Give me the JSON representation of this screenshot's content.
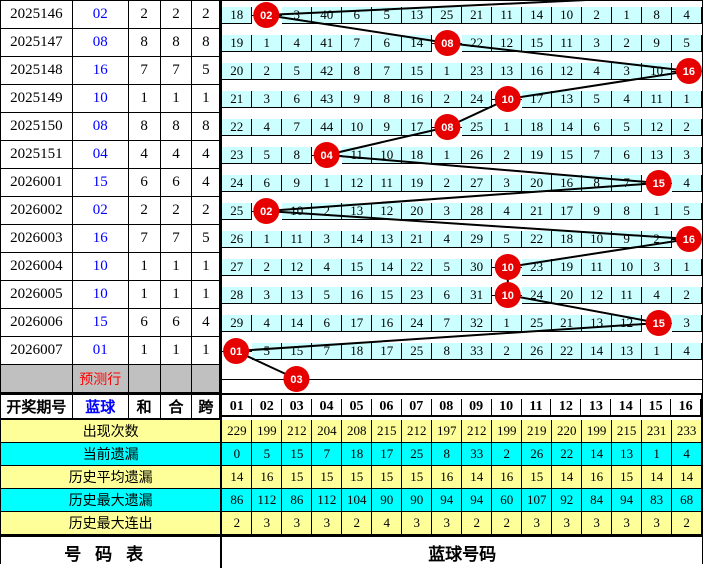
{
  "left_header": [
    "开奖期号",
    "蓝球",
    "和",
    "合",
    "跨"
  ],
  "ball_columns": [
    "01",
    "02",
    "03",
    "04",
    "05",
    "06",
    "07",
    "08",
    "09",
    "10",
    "11",
    "12",
    "13",
    "14",
    "15",
    "16"
  ],
  "rows": [
    {
      "period": "2025146",
      "ball": "02",
      "sum": "2",
      "he": "2",
      "span": "2",
      "circle_col": 2,
      "cells": [
        "18",
        "",
        "3",
        "40",
        "6",
        "5",
        "13",
        "25",
        "21",
        "11",
        "14",
        "10",
        "2",
        "1",
        "8",
        "4"
      ]
    },
    {
      "period": "2025147",
      "ball": "08",
      "sum": "8",
      "he": "8",
      "span": "8",
      "circle_col": 8,
      "cells": [
        "19",
        "1",
        "4",
        "41",
        "7",
        "6",
        "14",
        "",
        "22",
        "12",
        "15",
        "11",
        "3",
        "2",
        "9",
        "5"
      ]
    },
    {
      "period": "2025148",
      "ball": "16",
      "sum": "7",
      "he": "7",
      "span": "5",
      "circle_col": 16,
      "cells": [
        "20",
        "2",
        "5",
        "42",
        "8",
        "7",
        "15",
        "1",
        "23",
        "13",
        "16",
        "12",
        "4",
        "3",
        "10",
        ""
      ]
    },
    {
      "period": "2025149",
      "ball": "10",
      "sum": "1",
      "he": "1",
      "span": "1",
      "circle_col": 10,
      "cells": [
        "21",
        "3",
        "6",
        "43",
        "9",
        "8",
        "16",
        "2",
        "24",
        "",
        "17",
        "13",
        "5",
        "4",
        "11",
        "1"
      ]
    },
    {
      "period": "2025150",
      "ball": "08",
      "sum": "8",
      "he": "8",
      "span": "8",
      "circle_col": 8,
      "cells": [
        "22",
        "4",
        "7",
        "44",
        "10",
        "9",
        "17",
        "",
        "25",
        "1",
        "18",
        "14",
        "6",
        "5",
        "12",
        "2"
      ]
    },
    {
      "period": "2025151",
      "ball": "04",
      "sum": "4",
      "he": "4",
      "span": "4",
      "circle_col": 4,
      "cells": [
        "23",
        "5",
        "8",
        "",
        "11",
        "10",
        "18",
        "1",
        "26",
        "2",
        "19",
        "15",
        "7",
        "6",
        "13",
        "3"
      ]
    },
    {
      "period": "2026001",
      "ball": "15",
      "sum": "6",
      "he": "6",
      "span": "4",
      "circle_col": 15,
      "cells": [
        "24",
        "6",
        "9",
        "1",
        "12",
        "11",
        "19",
        "2",
        "27",
        "3",
        "20",
        "16",
        "8",
        "7",
        "",
        "4"
      ]
    },
    {
      "period": "2026002",
      "ball": "02",
      "sum": "2",
      "he": "2",
      "span": "2",
      "circle_col": 2,
      "cells": [
        "25",
        "",
        "10",
        "2",
        "13",
        "12",
        "20",
        "3",
        "28",
        "4",
        "21",
        "17",
        "9",
        "8",
        "1",
        "5"
      ]
    },
    {
      "period": "2026003",
      "ball": "16",
      "sum": "7",
      "he": "7",
      "span": "5",
      "circle_col": 16,
      "cells": [
        "26",
        "1",
        "11",
        "3",
        "14",
        "13",
        "21",
        "4",
        "29",
        "5",
        "22",
        "18",
        "10",
        "9",
        "2",
        ""
      ]
    },
    {
      "period": "2026004",
      "ball": "10",
      "sum": "1",
      "he": "1",
      "span": "1",
      "circle_col": 10,
      "cells": [
        "27",
        "2",
        "12",
        "4",
        "15",
        "14",
        "22",
        "5",
        "30",
        "",
        "23",
        "19",
        "11",
        "10",
        "3",
        "1"
      ]
    },
    {
      "period": "2026005",
      "ball": "10",
      "sum": "1",
      "he": "1",
      "span": "1",
      "circle_col": 10,
      "cells": [
        "28",
        "3",
        "13",
        "5",
        "16",
        "15",
        "23",
        "6",
        "31",
        "",
        "24",
        "20",
        "12",
        "11",
        "4",
        "2"
      ]
    },
    {
      "period": "2026006",
      "ball": "15",
      "sum": "6",
      "he": "6",
      "span": "4",
      "circle_col": 15,
      "cells": [
        "29",
        "4",
        "14",
        "6",
        "17",
        "16",
        "24",
        "7",
        "32",
        "1",
        "25",
        "21",
        "13",
        "12",
        "",
        "3"
      ]
    },
    {
      "period": "2026007",
      "ball": "01",
      "sum": "1",
      "he": "1",
      "span": "1",
      "circle_col": 1,
      "cells": [
        "",
        "5",
        "15",
        "7",
        "18",
        "17",
        "25",
        "8",
        "33",
        "2",
        "26",
        "22",
        "14",
        "13",
        "1",
        "4"
      ]
    }
  ],
  "prediction_row": {
    "label": "预测行",
    "circle_col": 3,
    "circle_label": "03"
  },
  "stats": [
    {
      "label": "出现次数",
      "tone": "yellow",
      "values": [
        "229",
        "199",
        "212",
        "204",
        "208",
        "215",
        "212",
        "197",
        "212",
        "199",
        "219",
        "220",
        "199",
        "215",
        "231",
        "233"
      ]
    },
    {
      "label": "当前遗漏",
      "tone": "cyan",
      "values": [
        "0",
        "5",
        "15",
        "7",
        "18",
        "17",
        "25",
        "8",
        "33",
        "2",
        "26",
        "22",
        "14",
        "13",
        "1",
        "4"
      ]
    },
    {
      "label": "历史平均遗漏",
      "tone": "yellow",
      "values": [
        "14",
        "16",
        "15",
        "15",
        "15",
        "15",
        "15",
        "16",
        "14",
        "16",
        "15",
        "14",
        "16",
        "15",
        "14",
        "14"
      ]
    },
    {
      "label": "历史最大遗漏",
      "tone": "cyan",
      "values": [
        "86",
        "112",
        "86",
        "112",
        "104",
        "90",
        "90",
        "94",
        "94",
        "60",
        "107",
        "92",
        "84",
        "94",
        "83",
        "68"
      ]
    },
    {
      "label": "历史最大连出",
      "tone": "yellow",
      "values": [
        "2",
        "3",
        "3",
        "3",
        "2",
        "4",
        "3",
        "3",
        "2",
        "2",
        "3",
        "3",
        "3",
        "3",
        "3",
        "2"
      ]
    }
  ],
  "footer": {
    "left": "号码表",
    "right": "蓝球号码"
  },
  "colors": {
    "grid_bg": "#CCFFFF",
    "row_yellow": "#FFFF99",
    "row_cyan": "#00FFFF",
    "pred_gray": "#C0C0C0",
    "circle_red": "#E60000",
    "ball_blue": "#0000FF",
    "pred_text_red": "#FF0000",
    "line": "#000000"
  },
  "chart_data": {
    "type": "table",
    "categories": [
      "2025146",
      "2025147",
      "2025148",
      "2025149",
      "2025150",
      "2025151",
      "2026001",
      "2026002",
      "2026003",
      "2026004",
      "2026005",
      "2026006",
      "2026007"
    ],
    "series": [
      {
        "name": "蓝球",
        "values": [
          2,
          8,
          16,
          10,
          8,
          4,
          15,
          2,
          16,
          10,
          10,
          15,
          1
        ]
      },
      {
        "name": "和",
        "values": [
          2,
          8,
          7,
          1,
          8,
          4,
          6,
          2,
          7,
          1,
          1,
          6,
          1
        ]
      },
      {
        "name": "合",
        "values": [
          2,
          8,
          7,
          1,
          8,
          4,
          6,
          2,
          7,
          1,
          1,
          6,
          1
        ]
      },
      {
        "name": "跨",
        "values": [
          2,
          8,
          5,
          1,
          8,
          4,
          4,
          2,
          5,
          1,
          1,
          4,
          1
        ]
      }
    ],
    "predicted_value": 3,
    "number_range": [
      1,
      16
    ],
    "stats_rows": {
      "出现次数": [
        229,
        199,
        212,
        204,
        208,
        215,
        212,
        197,
        212,
        199,
        219,
        220,
        199,
        215,
        231,
        233
      ],
      "当前遗漏": [
        0,
        5,
        15,
        7,
        18,
        17,
        25,
        8,
        33,
        2,
        26,
        22,
        14,
        13,
        1,
        4
      ],
      "历史平均遗漏": [
        14,
        16,
        15,
        15,
        15,
        15,
        15,
        16,
        14,
        16,
        15,
        14,
        16,
        15,
        14,
        14
      ],
      "历史最大遗漏": [
        86,
        112,
        86,
        112,
        104,
        90,
        90,
        94,
        94,
        60,
        107,
        92,
        84,
        94,
        83,
        68
      ],
      "历史最大连出": [
        2,
        3,
        3,
        3,
        2,
        4,
        3,
        3,
        2,
        2,
        3,
        3,
        3,
        3,
        3,
        2
      ]
    }
  }
}
